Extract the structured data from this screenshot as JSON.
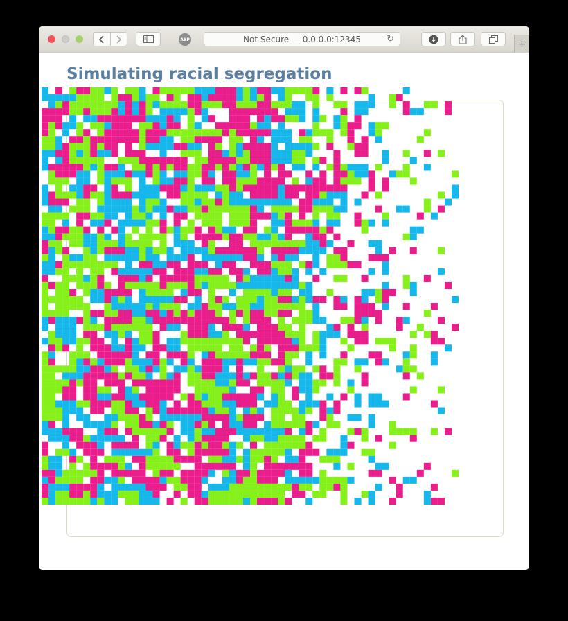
{
  "browser": {
    "address_text": "Not Secure — 0.0.0.0:12345",
    "abp_label": "ABP",
    "icons": [
      "back-icon",
      "forward-icon",
      "sidebar-icon",
      "adblock-icon",
      "reload-icon",
      "downloads-icon",
      "share-icon",
      "tabs-icon",
      "new-tab-icon"
    ]
  },
  "page": {
    "title": "Simulating racial segregation"
  },
  "simulation": {
    "grid_size": 60,
    "colors": {
      "pink": "#e91e8c",
      "blue": "#16b8ec",
      "green": "#86f01a",
      "empty": "#ffffff"
    }
  }
}
